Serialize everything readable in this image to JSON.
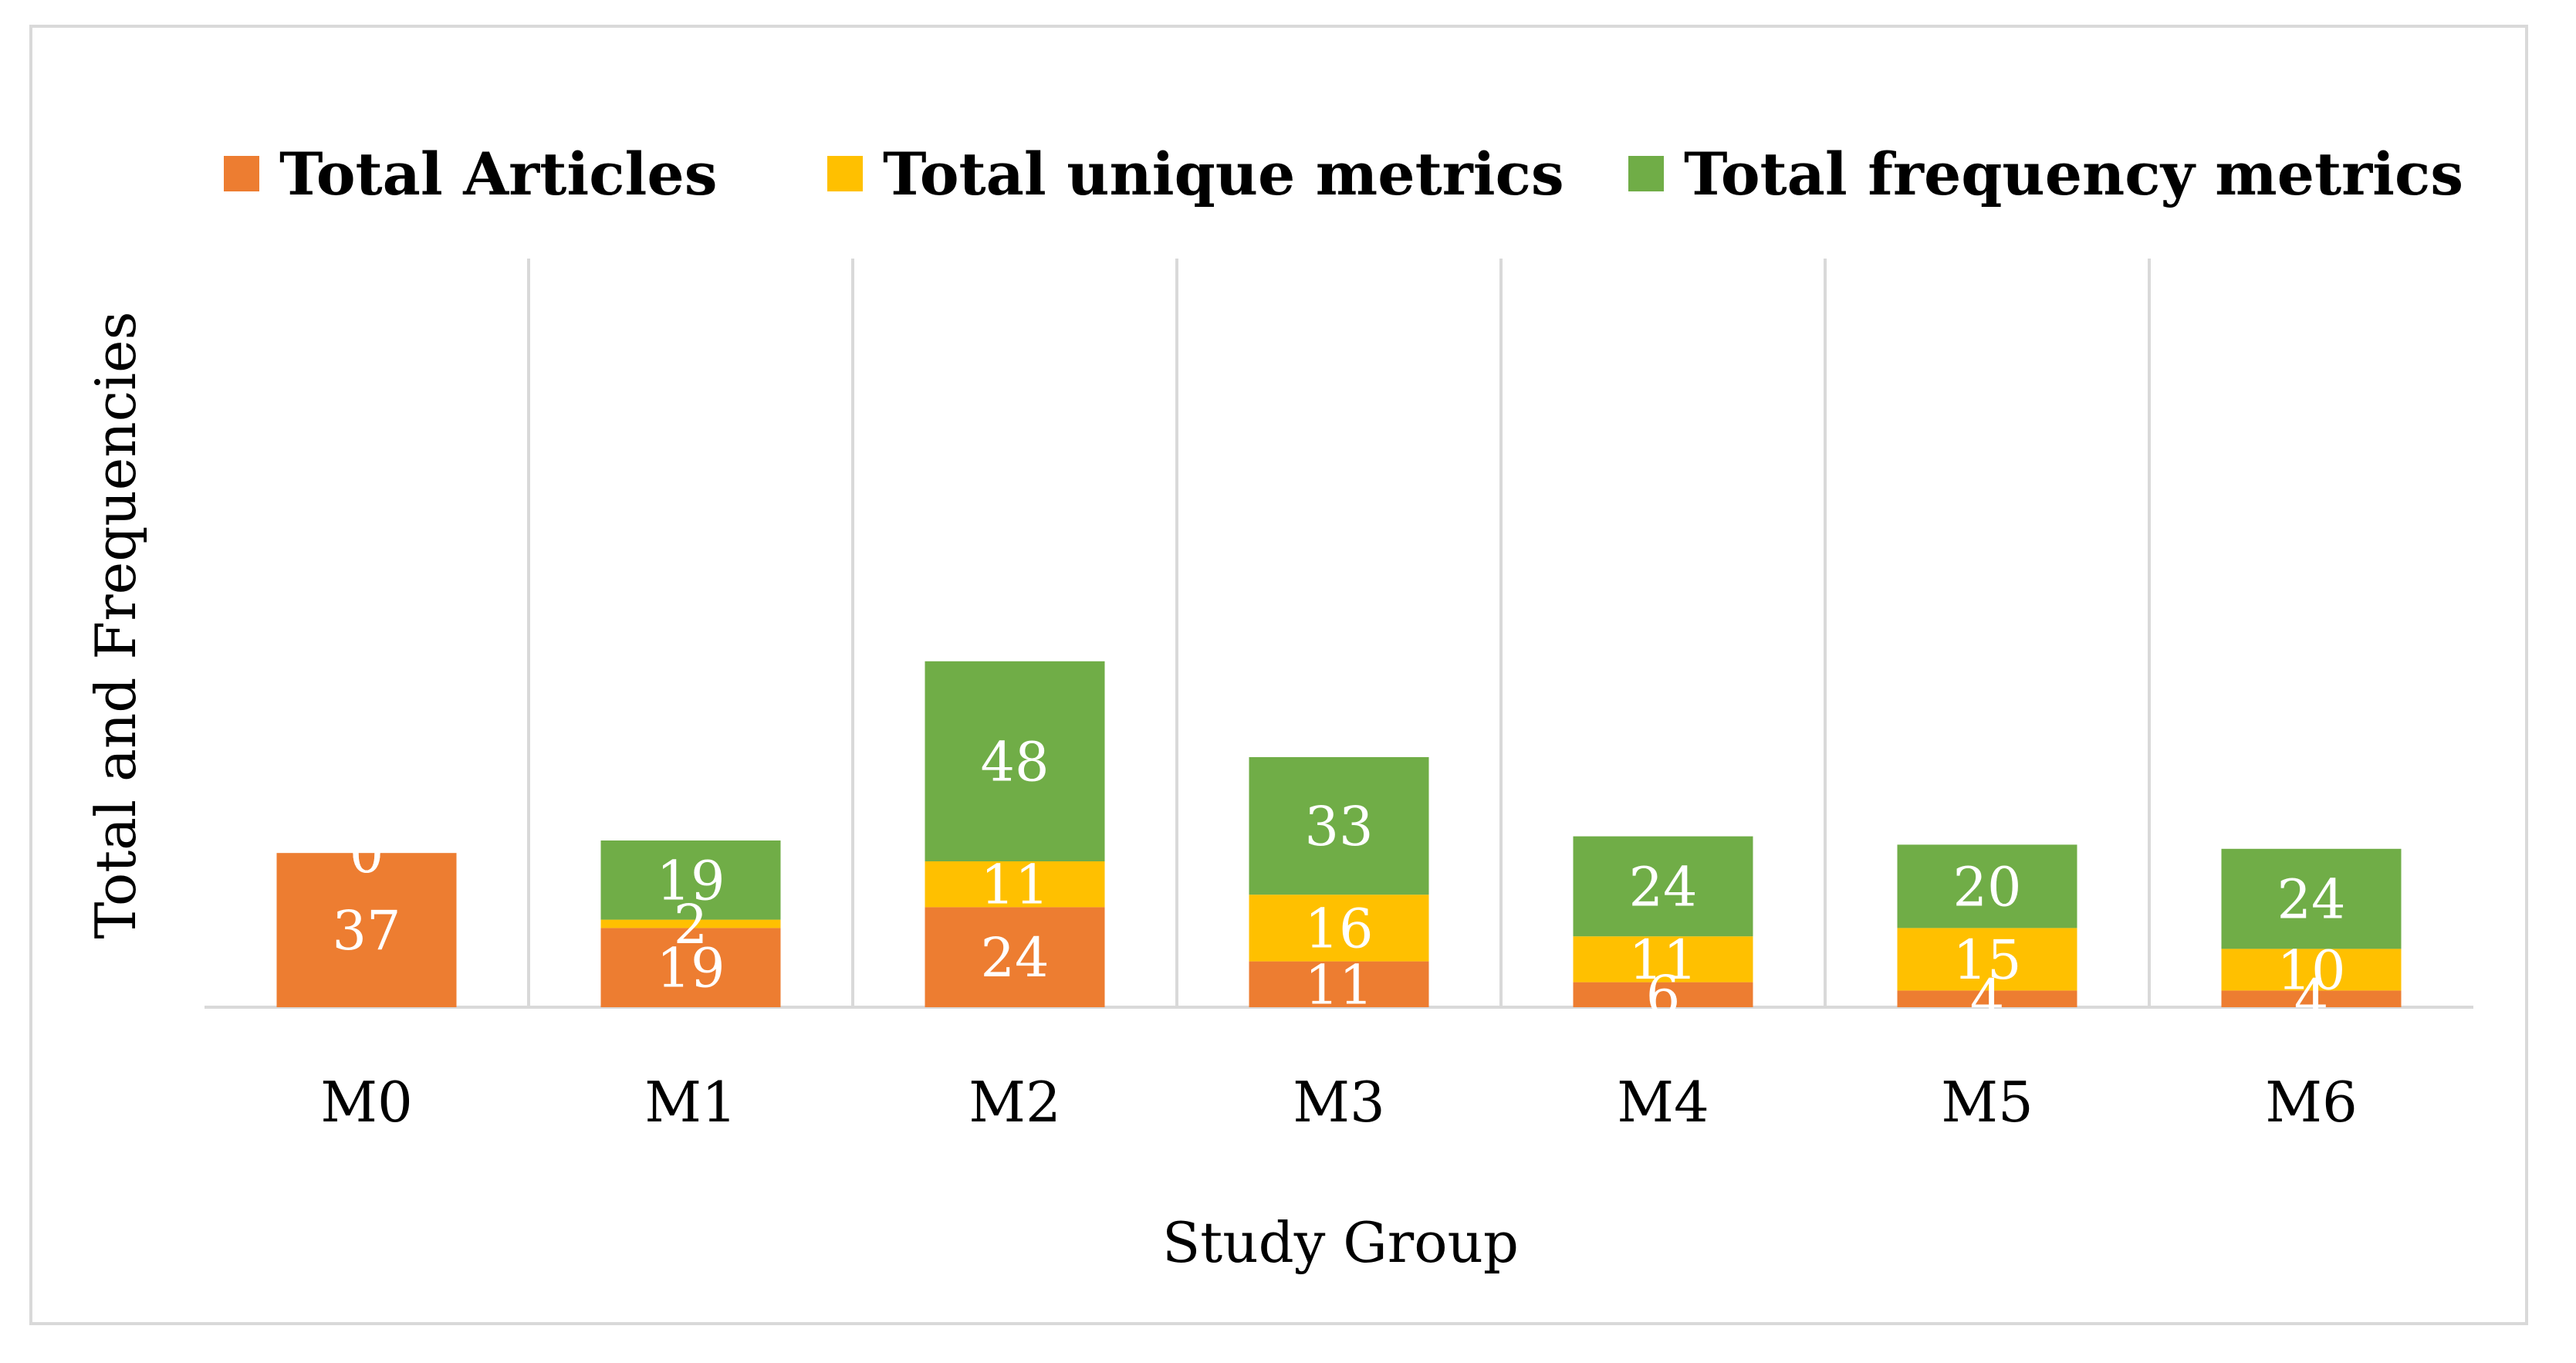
{
  "chart_data": {
    "type": "bar",
    "stacked": true,
    "title": "",
    "xlabel": "Study Group",
    "ylabel": "Total and Frequencies",
    "categories": [
      "M0",
      "M1",
      "M2",
      "M3",
      "M4",
      "M5",
      "M6"
    ],
    "series": [
      {
        "name": "Total Articles",
        "color": "#ed7d31",
        "values": [
          37,
          19,
          24,
          11,
          6,
          4,
          4
        ]
      },
      {
        "name": "Total unique metrics",
        "color": "#ffc000",
        "values": [
          0,
          2,
          11,
          16,
          11,
          15,
          10
        ]
      },
      {
        "name": "Total frequency metrics",
        "color": "#70ad47",
        "values": [
          0,
          19,
          48,
          33,
          24,
          20,
          24
        ]
      }
    ],
    "ylim": [
      0,
      90
    ],
    "grid": "vertical category separators",
    "legend": "top"
  }
}
